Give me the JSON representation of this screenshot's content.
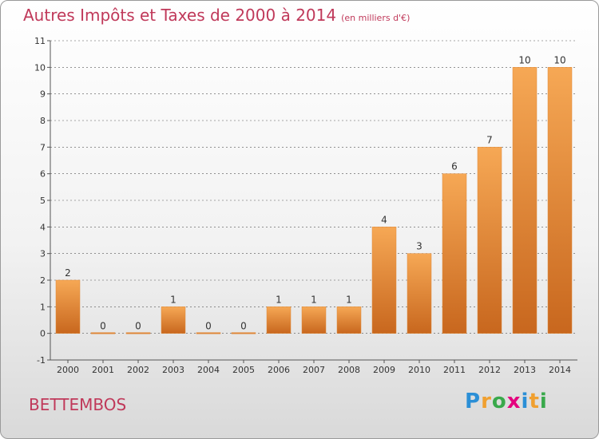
{
  "header": {
    "title": "Autres Impôts et Taxes de 2000 à 2014",
    "unit": "(en milliers d'€)"
  },
  "commune": "BETTEMBOS",
  "logo": {
    "text": "Proxiti",
    "colors": [
      "#2b8fd6",
      "#f0a030",
      "#39a94b",
      "#e4007e",
      "#2b8fd6",
      "#f0a030",
      "#39a94b"
    ]
  },
  "colors": {
    "bar_light": "#f6a855",
    "bar_dark": "#c8671e",
    "accent_text": "#c0395a",
    "grid": "#555555"
  },
  "chart_data": {
    "type": "bar",
    "categories": [
      "2000",
      "2001",
      "2002",
      "2003",
      "2004",
      "2005",
      "2006",
      "2007",
      "2008",
      "2009",
      "2010",
      "2011",
      "2012",
      "2013",
      "2014"
    ],
    "values": [
      2,
      0,
      0,
      1,
      0,
      0,
      1,
      1,
      1,
      4,
      3,
      6,
      7,
      10,
      10
    ],
    "yticks": [
      -1,
      0,
      1,
      2,
      3,
      4,
      5,
      6,
      7,
      8,
      9,
      10,
      11
    ],
    "ylim": [
      -1,
      11
    ],
    "grid": "dashed horizontal",
    "legend": "none"
  }
}
